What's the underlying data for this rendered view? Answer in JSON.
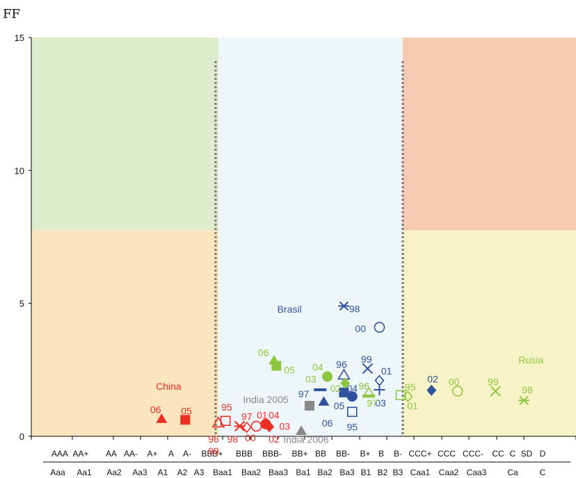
{
  "chart_data": {
    "type": "scatter",
    "ylabel": "FF",
    "ylim": [
      0,
      15
    ],
    "yticks": [
      0,
      5,
      10,
      15
    ],
    "x_categories_sp": [
      "AAA",
      "AA+",
      "AA",
      "AA-",
      "A+",
      "A",
      "A-",
      "BBB+",
      "BBB",
      "BBB-",
      "BB+",
      "BB",
      "BB-",
      "B+",
      "B",
      "B-",
      "CCC+",
      "CCC",
      "CCC-",
      "CC",
      "C",
      "SD",
      "D"
    ],
    "x_categories_moodys": [
      "Aaa",
      "Aa1",
      "Aa2",
      "Aa3",
      "A1",
      "A2",
      "A3",
      "Baa1",
      "Baa2",
      "Baa3",
      "Ba1",
      "Ba2",
      "Ba3",
      "B1",
      "B2",
      "B3",
      "Caa1",
      "Caa2",
      "Caa3",
      "Ca",
      "C"
    ],
    "zones": {
      "colors": {
        "green": "#dfeccc",
        "orange": "#fbe5bf",
        "blue": "#eef6fa",
        "red": "#f8cab4",
        "yellow": "#f8f3c6"
      },
      "band_y_split": 7.75,
      "left_boundary": 7.8,
      "right_boundary": 15.8
    },
    "countries": [
      {
        "name": "China",
        "color": "#ee2e24",
        "label_x": 5.3,
        "label_y": 1.75
      },
      {
        "name": "Brasil",
        "color": "#2f52a0",
        "label_x": 10.4,
        "label_y": 4.65
      },
      {
        "name": "Rusia",
        "color": "#8dc63f",
        "label_x": 20.6,
        "label_y": 2.75
      },
      {
        "name": "India 2005",
        "color": "#888888",
        "label_x": 9.4,
        "label_y": 1.25
      },
      {
        "name": "India 2006",
        "color": "#888888",
        "label_x": 11.1,
        "label_y": -0.25
      }
    ],
    "series": [
      {
        "name": "China",
        "color": "#ee2e24",
        "points": [
          {
            "year": "06",
            "x": 5.0,
            "y": 0.65,
            "marker": "triangle-filled",
            "lx": 4.75,
            "ly": 1.0
          },
          {
            "year": "05",
            "x": 6.0,
            "y": 0.62,
            "marker": "square-filled",
            "lx": 6.05,
            "ly": 0.95
          },
          {
            "year": "95",
            "x": 7.7,
            "y": 0.58,
            "marker": "square-open",
            "lx": 7.75,
            "ly": 1.1
          },
          {
            "year": "96",
            "x": 7.4,
            "y": 0.5,
            "marker": "triangle-open",
            "lx": 7.2,
            "ly": -0.1
          },
          {
            "year": "99",
            "x": 7.4,
            "y": 0.5,
            "marker": "none",
            "lx": 7.2,
            "ly": -0.55
          },
          {
            "year": "97",
            "x": 8.3,
            "y": 0.38,
            "marker": "star",
            "lx": 8.6,
            "ly": 0.75
          },
          {
            "year": "98",
            "x": 8.3,
            "y": 0.38,
            "marker": "x",
            "lx": 8.0,
            "ly": -0.1
          },
          {
            "year": "00",
            "x": 8.6,
            "y": 0.34,
            "marker": "diamond-open",
            "lx": 8.75,
            "ly": -0.05
          },
          {
            "year": "01",
            "x": 9.0,
            "y": 0.38,
            "marker": "circle-open",
            "lx": 9.25,
            "ly": 0.8
          },
          {
            "year": "04",
            "x": 9.4,
            "y": 0.46,
            "marker": "circle-filled",
            "lx": 9.75,
            "ly": 0.8
          },
          {
            "year": "02",
            "x": 9.55,
            "y": 0.36,
            "marker": "diamond-filled",
            "lx": 9.75,
            "ly": -0.1
          },
          {
            "year": "03",
            "x": 9.8,
            "y": 0.48,
            "marker": "none",
            "lx": 10.2,
            "ly": 0.38
          }
        ]
      },
      {
        "name": "Brasil",
        "color": "#2f52a0",
        "points": [
          {
            "year": "98",
            "x": 12.7,
            "y": 4.9,
            "marker": "star",
            "lx": 13.15,
            "ly": 4.8
          },
          {
            "year": "00",
            "x": 14.2,
            "y": 4.1,
            "marker": "circle-open",
            "lx": 13.4,
            "ly": 4.05
          },
          {
            "year": "99",
            "x": 13.7,
            "y": 2.55,
            "marker": "x",
            "lx": 13.65,
            "ly": 2.9
          },
          {
            "year": "01",
            "x": 14.2,
            "y": 2.1,
            "marker": "diamond-open",
            "lx": 14.5,
            "ly": 2.45
          },
          {
            "year": "96",
            "x": 12.7,
            "y": 2.3,
            "marker": "triangle-open",
            "lx": 12.6,
            "ly": 2.7
          },
          {
            "year": "03",
            "x": 14.2,
            "y": 1.75,
            "marker": "plus",
            "lx": 14.25,
            "ly": 1.25
          },
          {
            "year": "97",
            "x": 11.7,
            "y": 1.75,
            "marker": "dash",
            "lx": 11.0,
            "ly": 1.6
          },
          {
            "year": "06",
            "x": 11.85,
            "y": 1.3,
            "marker": "triangle-filled",
            "lx": 12.0,
            "ly": 0.5
          },
          {
            "year": "05",
            "x": 12.7,
            "y": 1.65,
            "marker": "square-filled",
            "lx": 12.5,
            "ly": 1.15
          },
          {
            "year": "04",
            "x": 13.05,
            "y": 1.5,
            "marker": "circle-filled",
            "lx": 13.05,
            "ly": 1.8
          },
          {
            "year": "95",
            "x": 13.05,
            "y": 0.92,
            "marker": "square-open",
            "lx": 13.05,
            "ly": 0.35
          },
          {
            "year": "02",
            "x": 16.4,
            "y": 1.73,
            "marker": "diamond-filled",
            "lx": 16.45,
            "ly": 2.15
          }
        ]
      },
      {
        "name": "Rusia",
        "color": "#8dc63f",
        "points": [
          {
            "year": "06",
            "x": 9.75,
            "y": 2.85,
            "marker": "triangle-filled",
            "lx": 9.3,
            "ly": 3.15
          },
          {
            "year": "05",
            "x": 9.85,
            "y": 2.65,
            "marker": "square-filled",
            "lx": 10.4,
            "ly": 2.5
          },
          {
            "year": "04",
            "x": 12.0,
            "y": 2.25,
            "marker": "circle-filled",
            "lx": 11.6,
            "ly": 2.6
          },
          {
            "year": "03",
            "x": 11.9,
            "y": 2.2,
            "marker": "none",
            "lx": 11.3,
            "ly": 2.15
          },
          {
            "year": "02",
            "x": 12.75,
            "y": 2.0,
            "marker": "diamond-filled",
            "lx": 12.35,
            "ly": 1.8
          },
          {
            "year": "96",
            "x": 13.75,
            "y": 1.62,
            "marker": "triangle-open",
            "lx": 13.55,
            "ly": 1.9
          },
          {
            "year": "97",
            "x": 13.75,
            "y": 1.52,
            "marker": "dash",
            "lx": 13.9,
            "ly": 1.25
          },
          {
            "year": "95",
            "x": 15.1,
            "y": 1.55,
            "marker": "square-open",
            "lx": 15.5,
            "ly": 1.85
          },
          {
            "year": "01",
            "x": 15.4,
            "y": 1.5,
            "marker": "diamond-open",
            "lx": 15.6,
            "ly": 1.15
          },
          {
            "year": "00",
            "x": 17.5,
            "y": 1.7,
            "marker": "circle-open",
            "lx": 17.35,
            "ly": 2.05
          },
          {
            "year": "99",
            "x": 19.1,
            "y": 1.7,
            "marker": "x",
            "lx": 19.0,
            "ly": 2.05
          },
          {
            "year": "98",
            "x": 20.3,
            "y": 1.35,
            "marker": "star",
            "lx": 20.45,
            "ly": 1.75
          }
        ]
      },
      {
        "name": "India",
        "color": "#888888",
        "points": [
          {
            "year": "",
            "x": 11.25,
            "y": 1.15,
            "marker": "square-filled",
            "lx": 0,
            "ly": 0
          },
          {
            "year": "",
            "x": 10.9,
            "y": 0.2,
            "marker": "triangle-filled",
            "lx": 0,
            "ly": 0
          }
        ]
      }
    ]
  }
}
